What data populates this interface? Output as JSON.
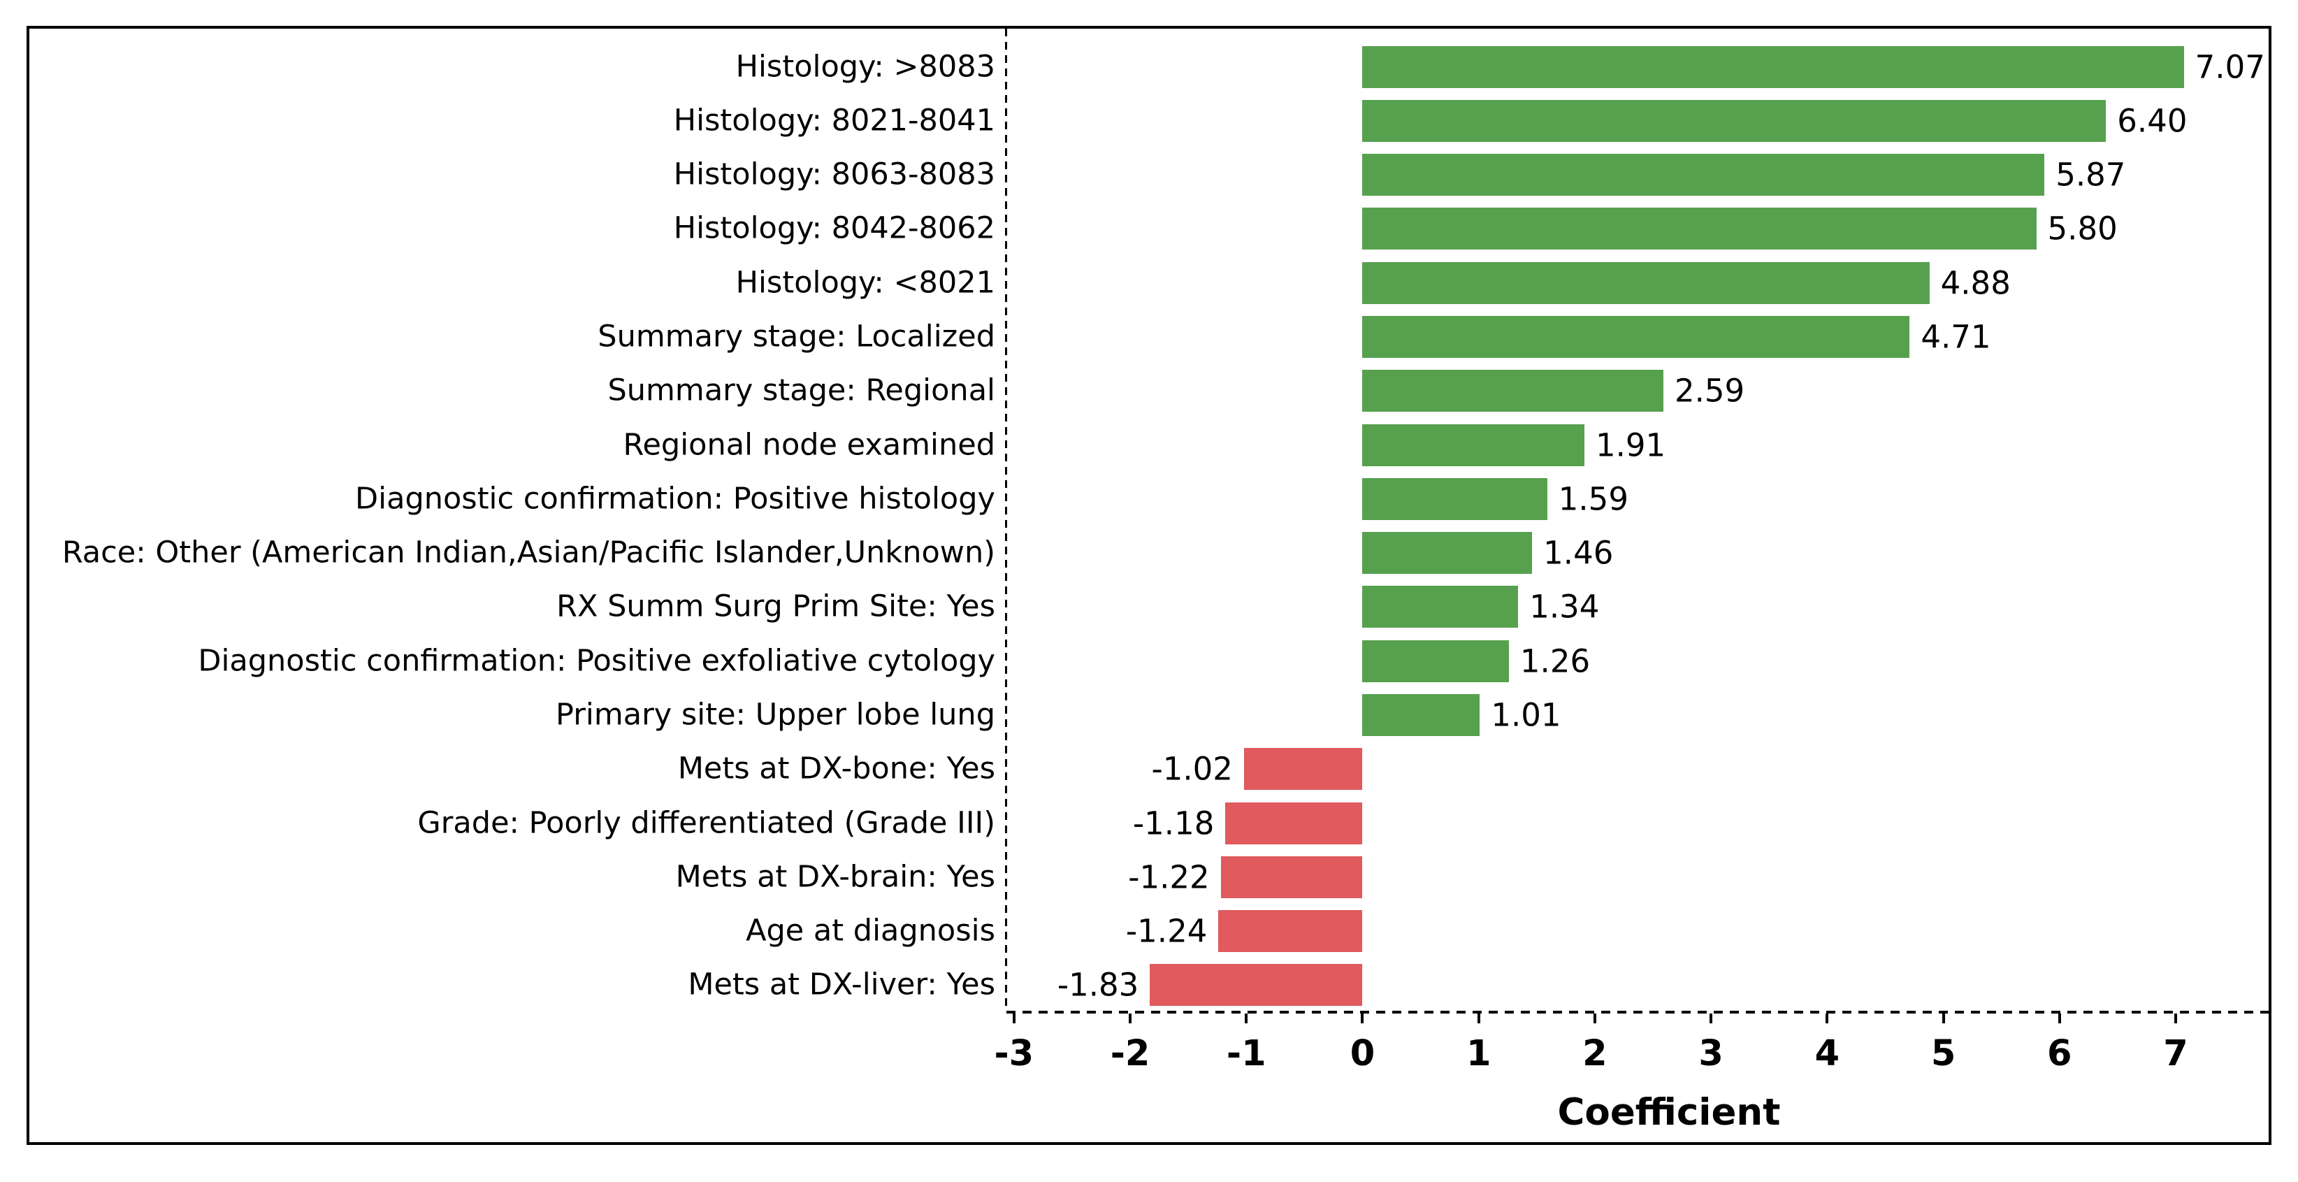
{
  "chart_data": {
    "type": "bar",
    "orientation": "horizontal",
    "title": "",
    "xlabel": "Coefficient",
    "ylabel": "",
    "xlim": [
      -3.065,
      7.8
    ],
    "xticks": [
      -3,
      -2,
      -1,
      0,
      1,
      2,
      3,
      4,
      5,
      6,
      7
    ],
    "grid": false,
    "legend": null,
    "value_label_decimals": 2,
    "colors": {
      "positive_bar": "#57a14e",
      "negative_bar": "#e05a5e",
      "axis": "#000000",
      "text": "#000000",
      "background": "#ffffff"
    },
    "categories": [
      "Histology: >8083",
      "Histology: 8021-8041",
      "Histology: 8063-8083",
      "Histology: 8042-8062",
      "Histology: <8021",
      "Summary stage: Localized",
      "Summary stage: Regional",
      "Regional node examined",
      "Diagnostic confirmation: Positive histology",
      "Race: Other (American Indian,Asian/Pacific Islander,Unknown)",
      "RX Summ Surg Prim Site: Yes",
      "Diagnostic confirmation: Positive exfoliative cytology",
      "Primary site: Upper lobe lung",
      "Mets at DX-bone: Yes",
      "Grade: Poorly differentiated (Grade III)",
      "Mets at DX-brain: Yes",
      "Age at diagnosis",
      "Mets at DX-liver: Yes"
    ],
    "values": [
      7.07,
      6.4,
      5.87,
      5.8,
      4.88,
      4.71,
      2.59,
      1.91,
      1.59,
      1.46,
      1.34,
      1.26,
      1.01,
      -1.02,
      -1.18,
      -1.22,
      -1.24,
      -1.83
    ]
  }
}
